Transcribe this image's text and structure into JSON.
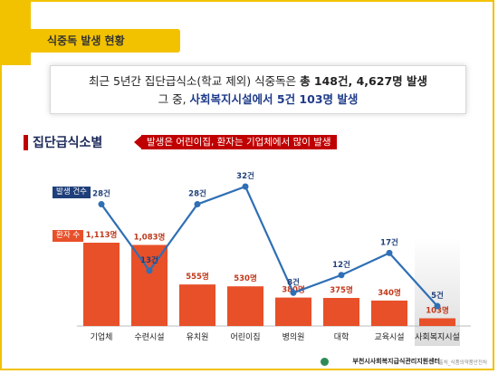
{
  "title": "식중독 발생 현황",
  "summary": {
    "line1_prefix": "최근 5년간 집단급식소(학교 제외) 식중독은 ",
    "line1_bold": "총 148건, 4,627명 발생",
    "line2_prefix": "그  중, ",
    "line2_blue": "사회복지시설에서 5건 103명 발생"
  },
  "section": {
    "title": "집단급식소별",
    "note": "발생은 어린이집, 환자는 기업체에서 많이 발생"
  },
  "colors": {
    "accent_yellow": "#f2c200",
    "bar_orange": "#e8502a",
    "line_blue": "#2f6fb5",
    "label_navy": "#1f3f7a",
    "red": "#c00000"
  },
  "chart_data": {
    "type": "bar",
    "categories": [
      "기업체",
      "수련시설",
      "유치원",
      "어린이집",
      "병의원",
      "대학",
      "교육시설",
      "사회복지시설"
    ],
    "series": [
      {
        "name": "환자 수",
        "type": "bar",
        "values": [
          1113,
          1083,
          555,
          530,
          380,
          375,
          340,
          103
        ],
        "labels": [
          "1,113명",
          "1,083명",
          "555명",
          "530명",
          "380명",
          "375명",
          "340명",
          "103명"
        ]
      },
      {
        "name": "발생 건수",
        "type": "line",
        "values": [
          28,
          13,
          28,
          32,
          8,
          12,
          17,
          5
        ],
        "labels": [
          "28건",
          "13건",
          "28건",
          "32건",
          "8건",
          "12건",
          "17건",
          "5건"
        ]
      }
    ],
    "highlight_category": "사회복지시설",
    "legend": "left"
  },
  "footer": {
    "org": "부천시사회복지급식관리지원센터",
    "source": "출처_식품의약품안전처"
  }
}
